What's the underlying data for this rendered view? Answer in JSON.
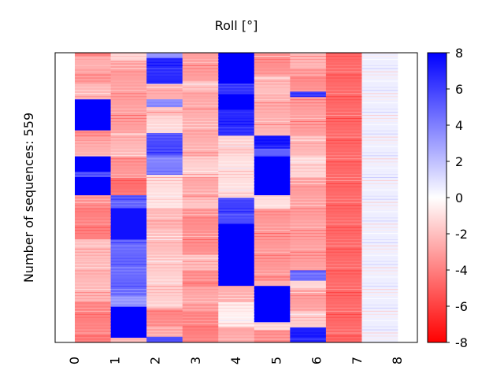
{
  "chart_data": {
    "type": "heatmap",
    "title": "Roll [°]",
    "ylabel": "Number of sequences: 559",
    "xlabel": "",
    "x_tick_labels": [
      "0",
      "1",
      "2",
      "3",
      "4",
      "5",
      "6",
      "7",
      "8"
    ],
    "row_count": 559,
    "colorbar": {
      "min": -8,
      "max": 8,
      "ticks": [
        "8",
        "6",
        "4",
        "2",
        "0",
        "-2",
        "-4",
        "-6",
        "-8"
      ],
      "colormap": "bwr",
      "color_low": "#ff0000",
      "color_mid": "#ffffff",
      "color_high": "#0000ff"
    },
    "columns": [
      {
        "name": "0",
        "segments": [
          [
            0,
            6,
            -3.5
          ],
          [
            6,
            30,
            -2.5
          ],
          [
            30,
            60,
            -3.5
          ],
          [
            60,
            90,
            -2.0
          ],
          [
            90,
            150,
            8.0
          ],
          [
            150,
            165,
            -3.5
          ],
          [
            165,
            200,
            -2.5
          ],
          [
            200,
            230,
            8.0
          ],
          [
            230,
            240,
            5.5
          ],
          [
            240,
            275,
            8.0
          ],
          [
            275,
            300,
            -3.0
          ],
          [
            300,
            360,
            -4.0
          ],
          [
            360,
            400,
            -2.5
          ],
          [
            400,
            450,
            -2.0
          ],
          [
            450,
            480,
            -2.5
          ],
          [
            480,
            525,
            -3.5
          ],
          [
            525,
            559,
            -4.0
          ]
        ]
      },
      {
        "name": "1",
        "segments": [
          [
            0,
            15,
            -1.5
          ],
          [
            15,
            60,
            -2.5
          ],
          [
            60,
            110,
            -3.0
          ],
          [
            110,
            155,
            -3.5
          ],
          [
            155,
            200,
            -2.0
          ],
          [
            200,
            240,
            -3.5
          ],
          [
            240,
            275,
            -4.0
          ],
          [
            275,
            300,
            5.0
          ],
          [
            300,
            360,
            7.5
          ],
          [
            360,
            400,
            5.0
          ],
          [
            400,
            470,
            4.5
          ],
          [
            470,
            490,
            3.5
          ],
          [
            490,
            550,
            8.0
          ],
          [
            550,
            559,
            -2.5
          ]
        ]
      },
      {
        "name": "2",
        "segments": [
          [
            0,
            10,
            3.5
          ],
          [
            10,
            60,
            6.5
          ],
          [
            60,
            90,
            -2.0
          ],
          [
            90,
            105,
            3.5
          ],
          [
            105,
            120,
            -2.5
          ],
          [
            120,
            155,
            -1.0
          ],
          [
            155,
            180,
            5.5
          ],
          [
            180,
            200,
            6.0
          ],
          [
            200,
            235,
            4.0
          ],
          [
            235,
            280,
            -1.5
          ],
          [
            280,
            300,
            -0.5
          ],
          [
            300,
            340,
            -2.5
          ],
          [
            340,
            400,
            -1.5
          ],
          [
            400,
            450,
            -1.5
          ],
          [
            450,
            495,
            -2.0
          ],
          [
            495,
            530,
            -3.5
          ],
          [
            530,
            548,
            -2.5
          ],
          [
            548,
            559,
            6.0
          ]
        ]
      },
      {
        "name": "3",
        "segments": [
          [
            0,
            55,
            -3.5
          ],
          [
            55,
            75,
            -1.5
          ],
          [
            75,
            110,
            -3.0
          ],
          [
            110,
            150,
            -2.0
          ],
          [
            150,
            200,
            -2.5
          ],
          [
            200,
            240,
            -2.0
          ],
          [
            240,
            280,
            -2.5
          ],
          [
            280,
            300,
            -2.0
          ],
          [
            300,
            330,
            -3.0
          ],
          [
            330,
            390,
            -3.5
          ],
          [
            390,
            420,
            -2.5
          ],
          [
            420,
            450,
            -3.5
          ],
          [
            450,
            500,
            -3.0
          ],
          [
            500,
            559,
            -3.5
          ]
        ]
      },
      {
        "name": "4",
        "segments": [
          [
            0,
            60,
            8.0
          ],
          [
            60,
            80,
            6.0
          ],
          [
            80,
            110,
            8.0
          ],
          [
            110,
            160,
            6.5
          ],
          [
            160,
            195,
            -1.0
          ],
          [
            195,
            280,
            -1.0
          ],
          [
            280,
            300,
            5.5
          ],
          [
            300,
            330,
            6.0
          ],
          [
            330,
            410,
            8.0
          ],
          [
            410,
            450,
            8.0
          ],
          [
            450,
            480,
            -2.5
          ],
          [
            480,
            530,
            -1.0
          ],
          [
            530,
            559,
            -2.5
          ]
        ]
      },
      {
        "name": "5",
        "segments": [
          [
            0,
            45,
            -3.0
          ],
          [
            45,
            80,
            -2.0
          ],
          [
            80,
            140,
            -3.0
          ],
          [
            140,
            160,
            -2.0
          ],
          [
            160,
            185,
            7.0
          ],
          [
            185,
            200,
            5.5
          ],
          [
            200,
            275,
            8.0
          ],
          [
            275,
            300,
            -1.5
          ],
          [
            300,
            340,
            -3.0
          ],
          [
            340,
            440,
            -3.5
          ],
          [
            440,
            450,
            -2.0
          ],
          [
            450,
            520,
            8.0
          ],
          [
            520,
            535,
            -1.5
          ],
          [
            535,
            559,
            -3.5
          ]
        ]
      },
      {
        "name": "6",
        "segments": [
          [
            0,
            30,
            -2.5
          ],
          [
            30,
            75,
            -3.0
          ],
          [
            75,
            85,
            6.0
          ],
          [
            85,
            160,
            -3.5
          ],
          [
            160,
            200,
            -2.0
          ],
          [
            200,
            240,
            -1.5
          ],
          [
            240,
            300,
            -2.5
          ],
          [
            300,
            350,
            -3.0
          ],
          [
            350,
            420,
            -3.5
          ],
          [
            420,
            440,
            5.0
          ],
          [
            440,
            455,
            -1.5
          ],
          [
            455,
            500,
            -2.5
          ],
          [
            500,
            530,
            -1.5
          ],
          [
            530,
            559,
            6.5
          ]
        ]
      },
      {
        "name": "7",
        "segments": [
          [
            0,
            559,
            -4.5
          ]
        ]
      },
      {
        "name": "8",
        "segments": [
          [
            0,
            559,
            -0.0
          ]
        ]
      }
    ]
  }
}
